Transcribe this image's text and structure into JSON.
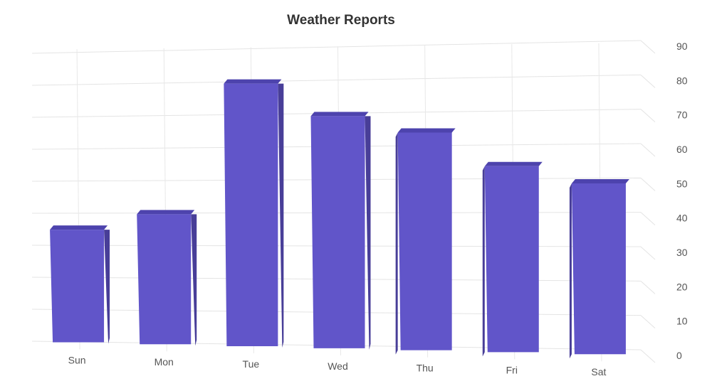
{
  "chart_data": {
    "type": "bar",
    "title": "Weather Reports",
    "categories": [
      "Sun",
      "Mon",
      "Tue",
      "Wed",
      "Thu",
      "Fri",
      "Sat"
    ],
    "values": [
      35,
      40,
      80,
      70,
      65,
      55,
      50
    ],
    "ylim": [
      0,
      90
    ],
    "yticks": [
      0,
      10,
      20,
      30,
      40,
      50,
      60,
      70,
      80,
      90
    ],
    "axis_side": "right",
    "grid": true,
    "legend": "none",
    "bar_color": "#6155c9",
    "bar_side_color": "#483e98",
    "bar_top_color": "#4d43ad"
  }
}
